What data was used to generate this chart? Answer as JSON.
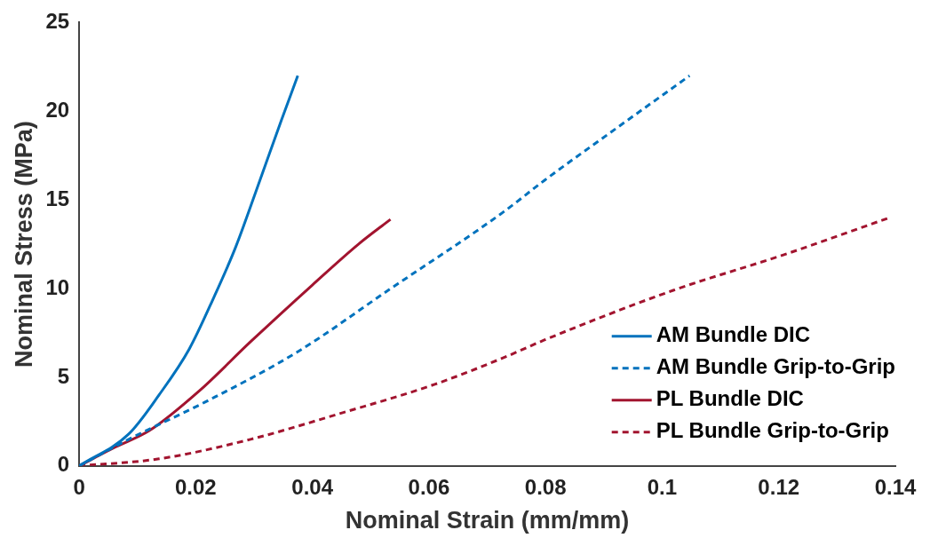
{
  "chart_data": {
    "type": "line",
    "xlabel": "Nominal Strain (mm/mm)",
    "ylabel": "Nominal Stress (MPa)",
    "xlim": [
      0,
      0.14
    ],
    "xticks": [
      0,
      0.02,
      0.04,
      0.06,
      0.08,
      0.1,
      0.12,
      0.14
    ],
    "ylim": [
      0,
      25
    ],
    "yticks": [
      0,
      5,
      10,
      15,
      20,
      25
    ],
    "legend": "bottom right",
    "grid": false,
    "marker": "none",
    "series": [
      {
        "name": "AM Bundle DIC",
        "color": "#0072bd",
        "line_style": "solid",
        "x": [
          0,
          0.0085,
          0.0137,
          0.0189,
          0.0231,
          0.0268,
          0.031,
          0.0347,
          0.0375
        ],
        "values": [
          0,
          1.8,
          4.0,
          6.6,
          9.5,
          12.3,
          16.1,
          19.5,
          22.0
        ]
      },
      {
        "name": "AM Bundle Grip-to-Grip",
        "color": "#0072bd",
        "line_style": "dashed",
        "x": [
          0,
          0.0085,
          0.0216,
          0.0373,
          0.053,
          0.0727,
          0.0798,
          0.0924,
          0.1047
        ],
        "values": [
          0,
          1.5,
          3.6,
          6.4,
          9.9,
          14.3,
          16.1,
          19.1,
          22.0
        ]
      },
      {
        "name": "PL Bundle DIC",
        "color": "#a2142f",
        "line_style": "solid",
        "x": [
          0,
          0.0058,
          0.0121,
          0.0205,
          0.0294,
          0.04,
          0.0479,
          0.0534
        ],
        "values": [
          0,
          1.0,
          2.0,
          4.2,
          7.0,
          10.2,
          12.5,
          13.9
        ]
      },
      {
        "name": "PL Bundle Grip-to-Grip",
        "color": "#a2142f",
        "line_style": "dashed",
        "x": [
          0,
          0.0137,
          0.0294,
          0.0452,
          0.061,
          0.0735,
          0.0798,
          0.1019,
          0.1208,
          0.139
        ],
        "values": [
          0,
          0.4,
          1.5,
          3.0,
          4.6,
          6.2,
          7.1,
          9.9,
          11.9,
          14.0
        ]
      }
    ]
  }
}
